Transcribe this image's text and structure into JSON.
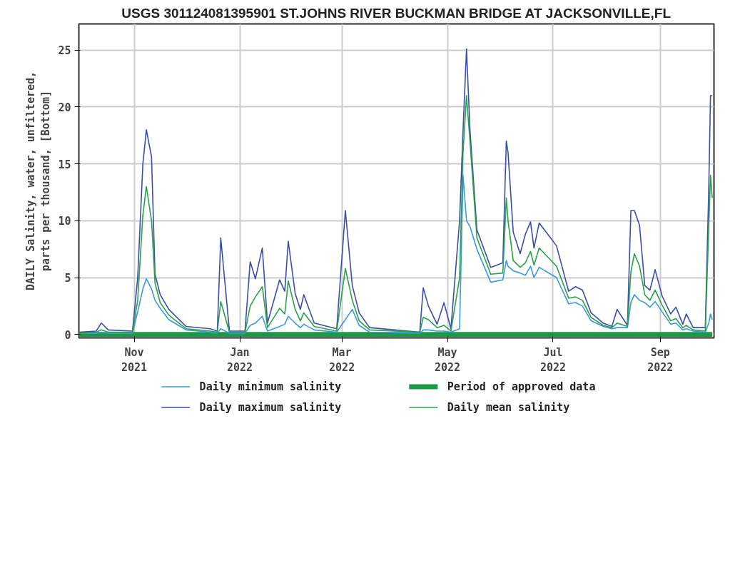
{
  "chart_data": {
    "type": "line",
    "title": "USGS 301124081395901 ST.JOHNS RIVER BUCKMAN BRIDGE AT JACKSONVILLE,FL",
    "ylabel": "DAILY Salinity, water, unfiltered,\nparts per thousand, [Bottom]",
    "x": [
      "2021-09-30",
      "2021-10-10",
      "2021-10-13",
      "2021-10-17",
      "2021-10-31",
      "2021-11-03",
      "2021-11-06",
      "2021-11-08",
      "2021-11-11",
      "2021-11-13",
      "2021-11-16",
      "2021-11-21",
      "2021-12-01",
      "2021-12-15",
      "2021-12-19",
      "2021-12-21",
      "2021-12-26",
      "2022-01-04",
      "2022-01-07",
      "2022-01-10",
      "2022-01-14",
      "2022-01-17",
      "2022-01-24",
      "2022-01-27",
      "2022-01-29",
      "2022-02-02",
      "2022-02-05",
      "2022-02-07",
      "2022-02-13",
      "2022-02-26",
      "2022-03-03",
      "2022-03-07",
      "2022-03-11",
      "2022-03-17",
      "2022-04-15",
      "2022-04-17",
      "2022-04-20",
      "2022-04-25",
      "2022-04-29",
      "2022-05-03",
      "2022-05-08",
      "2022-05-10",
      "2022-05-12",
      "2022-05-14",
      "2022-05-18",
      "2022-05-26",
      "2022-06-02",
      "2022-06-04",
      "2022-06-05",
      "2022-06-08",
      "2022-06-12",
      "2022-06-15",
      "2022-06-18",
      "2022-06-20",
      "2022-06-23",
      "2022-07-03",
      "2022-07-10",
      "2022-07-14",
      "2022-07-18",
      "2022-07-23",
      "2022-07-30",
      "2022-08-04",
      "2022-08-07",
      "2022-08-13",
      "2022-08-15",
      "2022-08-17",
      "2022-08-20",
      "2022-08-23",
      "2022-08-26",
      "2022-08-29",
      "2022-09-02",
      "2022-09-07",
      "2022-09-10",
      "2022-09-14",
      "2022-09-16",
      "2022-09-20",
      "2022-09-27",
      "2022-09-29",
      "2022-09-30",
      "2022-10-01"
    ],
    "series": [
      {
        "name": "Daily minimum salinity",
        "color": "#3a9ad9",
        "values": [
          0.1,
          0.1,
          0.2,
          0.1,
          0.1,
          2.0,
          4.0,
          4.9,
          4.0,
          3.0,
          2.3,
          1.3,
          0.4,
          0.2,
          0.1,
          0.5,
          0.1,
          0.1,
          0.8,
          1.0,
          1.6,
          0.3,
          0.7,
          0.9,
          1.6,
          1.0,
          0.6,
          0.9,
          0.4,
          0.2,
          1.3,
          2.2,
          0.8,
          0.2,
          0.1,
          0.4,
          0.4,
          0.3,
          0.3,
          0.2,
          0.5,
          14.0,
          10.0,
          9.5,
          7.5,
          4.6,
          4.8,
          6.5,
          6.0,
          5.6,
          5.4,
          5.2,
          6.0,
          5.0,
          5.9,
          5.0,
          2.7,
          2.8,
          2.5,
          1.2,
          0.7,
          0.5,
          0.6,
          0.6,
          2.8,
          3.5,
          3.0,
          2.8,
          2.4,
          2.9,
          2.0,
          0.9,
          1.0,
          0.4,
          0.5,
          0.3,
          0.2,
          1.0,
          1.8,
          1.3
        ]
      },
      {
        "name": "Daily maximum salinity",
        "color": "#3a4ea8",
        "values": [
          0.2,
          0.3,
          1.0,
          0.4,
          0.3,
          5.0,
          15.0,
          18.0,
          15.6,
          5.3,
          3.5,
          2.2,
          0.7,
          0.5,
          0.3,
          8.5,
          0.3,
          0.3,
          6.4,
          4.9,
          7.6,
          1.0,
          4.8,
          3.8,
          8.2,
          3.6,
          2.2,
          3.5,
          1.0,
          0.5,
          10.9,
          4.3,
          1.9,
          0.6,
          0.2,
          4.1,
          2.5,
          0.9,
          2.8,
          0.5,
          10.0,
          17.9,
          25.1,
          18.0,
          9.2,
          5.9,
          6.3,
          17.0,
          16.0,
          9.0,
          7.1,
          8.8,
          9.9,
          7.6,
          9.8,
          7.8,
          3.8,
          4.2,
          3.9,
          1.9,
          1.0,
          0.7,
          2.2,
          0.8,
          10.9,
          10.9,
          9.6,
          4.3,
          3.9,
          5.7,
          3.4,
          1.8,
          2.4,
          0.9,
          1.8,
          0.6,
          0.6,
          12.9,
          21.0,
          21.0
        ]
      },
      {
        "name": "Period of approved data",
        "color": "#1b9a45",
        "x": [
          "2021-09-30",
          "2022-10-01"
        ],
        "values": [
          0,
          0
        ]
      },
      {
        "name": "Daily mean salinity",
        "color": "#2aa04a",
        "values": [
          0.1,
          0.2,
          0.4,
          0.2,
          0.2,
          3.0,
          10.5,
          13.0,
          10.0,
          4.5,
          2.8,
          1.7,
          0.5,
          0.3,
          0.2,
          2.9,
          0.2,
          0.2,
          2.5,
          3.3,
          4.2,
          0.6,
          2.3,
          1.8,
          4.7,
          2.2,
          1.2,
          1.9,
          0.7,
          0.3,
          5.8,
          3.0,
          1.2,
          0.4,
          0.2,
          1.5,
          1.3,
          0.6,
          0.8,
          0.3,
          5.0,
          16.0,
          21.0,
          17.0,
          8.5,
          5.3,
          5.4,
          12.0,
          10.0,
          6.5,
          5.9,
          6.3,
          7.3,
          6.1,
          7.6,
          6.0,
          3.2,
          3.3,
          3.0,
          1.5,
          0.8,
          0.6,
          1.0,
          0.7,
          5.5,
          7.1,
          6.0,
          3.5,
          3.0,
          3.9,
          2.6,
          1.2,
          1.4,
          0.6,
          0.8,
          0.4,
          0.3,
          9.5,
          14.0,
          12.0
        ]
      }
    ],
    "xlim": [
      "2021-09-30",
      "2022-10-02"
    ],
    "xticks": [
      {
        "value": "2021-11-01",
        "label": "Nov\n2021"
      },
      {
        "value": "2022-01-01",
        "label": "Jan\n2022"
      },
      {
        "value": "2022-03-01",
        "label": "Mar\n2022"
      },
      {
        "value": "2022-05-01",
        "label": "May\n2022"
      },
      {
        "value": "2022-07-01",
        "label": "Jul\n2022"
      },
      {
        "value": "2022-09-01",
        "label": "Sep\n2022"
      }
    ],
    "ylim": [
      -0.3,
      27.3
    ],
    "yticks": [
      0,
      5,
      10,
      15,
      20,
      25
    ],
    "grid": true,
    "legend": "bottom"
  }
}
